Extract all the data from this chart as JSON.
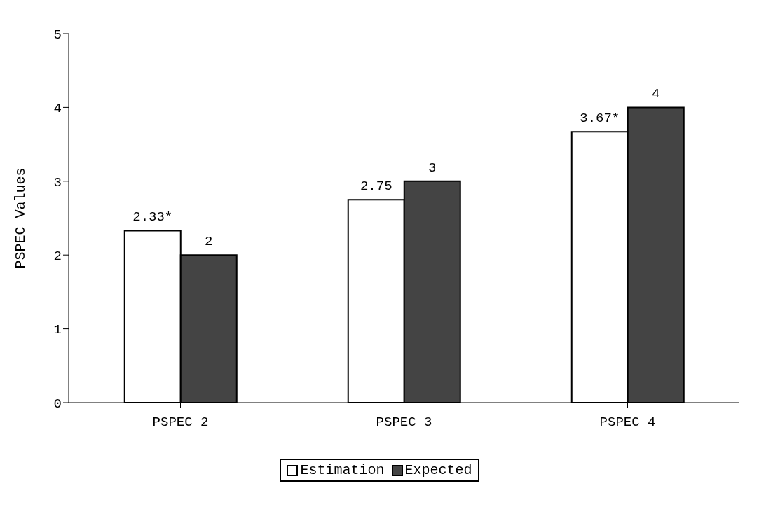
{
  "chart_data": {
    "type": "bar",
    "ylabel": "PSPEC Values",
    "categories": [
      "PSPEC 2",
      "PSPEC 3",
      "PSPEC 4"
    ],
    "series": [
      {
        "name": "Estimation",
        "color": "#ffffff",
        "values": [
          2.33,
          2.75,
          3.67
        ],
        "value_labels": [
          "2.33*",
          "2.75",
          "3.67*"
        ]
      },
      {
        "name": "Expected",
        "color": "#444444",
        "values": [
          2,
          3,
          4
        ],
        "value_labels": [
          "2",
          "3",
          "4"
        ]
      }
    ],
    "ylim": [
      0,
      5
    ],
    "yticks": [
      0,
      1,
      2,
      3,
      4,
      5
    ],
    "grid": false,
    "legend": "bottom"
  }
}
